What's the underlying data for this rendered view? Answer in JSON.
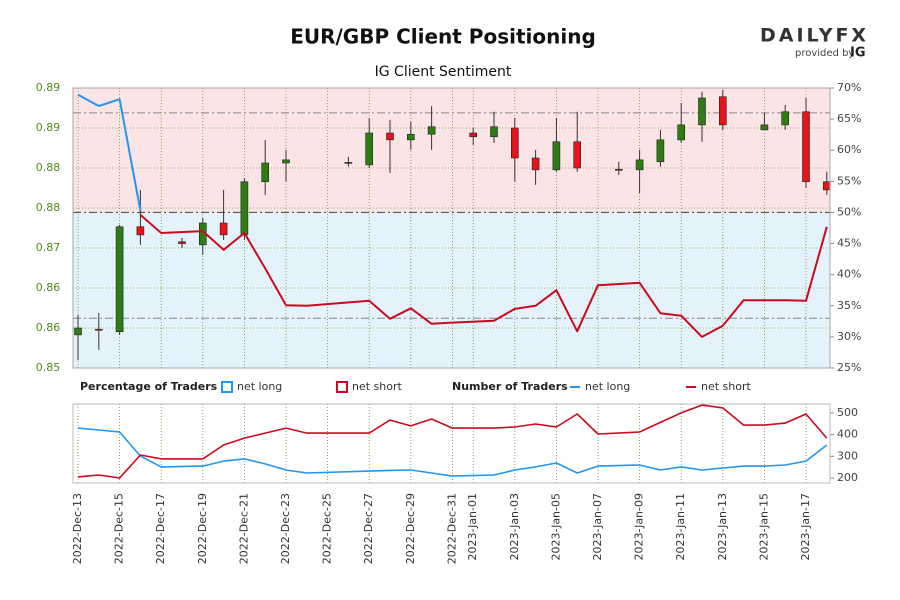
{
  "header": {
    "title": "EUR/GBP Client Positioning",
    "subtitle": "IG Client Sentiment",
    "brand": "DAILYFX",
    "tagline": "provided by",
    "brand_mark": "IG"
  },
  "chart_data": [
    {
      "type": "candlestick",
      "title": "Percentage of Traders",
      "candles": {
        "x": [
          "2022-Dec-13",
          "2022-Dec-14",
          "2022-Dec-15",
          "2022-Dec-16",
          "2022-Dec-18",
          "2022-Dec-19",
          "2022-Dec-20",
          "2022-Dec-21",
          "2022-Dec-22",
          "2022-Dec-23",
          "2022-Dec-26",
          "2022-Dec-27",
          "2022-Dec-28",
          "2022-Dec-29",
          "2022-Dec-30",
          "2023-Jan-01",
          "2023-Jan-02",
          "2023-Jan-03",
          "2023-Jan-04",
          "2023-Jan-05",
          "2023-Jan-06",
          "2023-Jan-08",
          "2023-Jan-09",
          "2023-Jan-10",
          "2023-Jan-11",
          "2023-Jan-12",
          "2023-Jan-13",
          "2023-Jan-15",
          "2023-Jan-16",
          "2023-Jan-17",
          "2023-Jan-18"
        ],
        "open": [
          0.8553,
          0.8562,
          0.8558,
          0.8726,
          0.8702,
          0.8697,
          0.8732,
          0.8713,
          0.8798,
          0.8828,
          0.8828,
          0.8825,
          0.8876,
          0.8865,
          0.8874,
          0.8876,
          0.887,
          0.8884,
          0.8836,
          0.8817,
          0.8862,
          0.8818,
          0.8817,
          0.883,
          0.8865,
          0.8889,
          0.8934,
          0.8881,
          0.8889,
          0.891,
          0.8798
        ],
        "high": [
          0.8585,
          0.8588,
          0.8729,
          0.8785,
          0.8708,
          0.874,
          0.8785,
          0.8804,
          0.8865,
          0.8849,
          0.8838,
          0.89,
          0.8897,
          0.8894,
          0.8919,
          0.8884,
          0.891,
          0.89,
          0.8849,
          0.89,
          0.891,
          0.883,
          0.8849,
          0.8881,
          0.8924,
          0.8942,
          0.8945,
          0.8908,
          0.8921,
          0.8932,
          0.8814
        ],
        "low": [
          0.8513,
          0.8529,
          0.8553,
          0.8697,
          0.8692,
          0.8681,
          0.8705,
          0.8705,
          0.8777,
          0.8798,
          0.8822,
          0.882,
          0.8812,
          0.8849,
          0.8849,
          0.8857,
          0.886,
          0.8798,
          0.8793,
          0.8814,
          0.8814,
          0.8809,
          0.878,
          0.8822,
          0.886,
          0.8862,
          0.8881,
          0.8881,
          0.8881,
          0.8788,
          0.8777
        ],
        "close": [
          0.8564,
          0.8561,
          0.8726,
          0.8713,
          0.8699,
          0.8732,
          0.8713,
          0.8798,
          0.8828,
          0.8833,
          0.8829,
          0.8876,
          0.8865,
          0.8874,
          0.8886,
          0.887,
          0.8886,
          0.8836,
          0.8817,
          0.8862,
          0.882,
          0.8817,
          0.8833,
          0.8865,
          0.8889,
          0.8932,
          0.8889,
          0.8889,
          0.891,
          0.8798,
          0.8785
        ],
        "up_color": "#2e7d12",
        "down_color": "#e8141b"
      },
      "x": [
        "2022-Dec-13",
        "2022-Dec-14",
        "2022-Dec-15",
        "2022-Dec-16",
        "2022-Dec-17",
        "2022-Dec-19",
        "2022-Dec-20",
        "2022-Dec-21",
        "2022-Dec-22",
        "2022-Dec-23",
        "2022-Dec-24",
        "2022-Dec-27",
        "2022-Dec-28",
        "2022-Dec-29",
        "2022-Dec-30",
        "2022-Dec-31",
        "2023-Jan-02",
        "2023-Jan-03",
        "2023-Jan-04",
        "2023-Jan-05",
        "2023-Jan-06",
        "2023-Jan-07",
        "2023-Jan-09",
        "2023-Jan-10",
        "2023-Jan-11",
        "2023-Jan-12",
        "2023-Jan-13",
        "2023-Jan-14",
        "2023-Jan-15",
        "2023-Jan-16",
        "2023-Jan-17",
        "2023-Jan-18"
      ],
      "series": [
        {
          "name": "net long",
          "color": "#2196f3",
          "axis": "y2",
          "values": [
            68.9,
            67.1,
            68.2,
            50.3,
            null,
            null,
            null,
            null,
            null,
            null,
            null,
            null,
            null,
            null,
            null,
            null,
            null,
            null,
            null,
            null,
            null,
            null,
            null,
            null,
            null,
            null,
            null,
            null,
            null,
            null,
            null,
            null
          ]
        },
        {
          "name": "net short",
          "color": "#cc0a1e",
          "axis": "y2",
          "values": [
            null,
            null,
            null,
            49.6,
            46.7,
            47.0,
            44.0,
            46.7,
            41.0,
            35.1,
            35.0,
            35.8,
            32.9,
            34.6,
            32.1,
            32.3,
            32.6,
            34.5,
            35.0,
            37.5,
            30.9,
            38.3,
            38.7,
            33.8,
            33.4,
            30.0,
            31.8,
            35.9,
            35.9,
            35.9,
            35.8,
            47.7
          ]
        }
      ],
      "ylim": [
        0.85,
        0.8948
      ],
      "yticks": [
        0.85,
        {
          "value": 0.8564,
          "label": "0.86"
        },
        {
          "value": 0.8628,
          "label": "0.86"
        },
        {
          "value": 0.8692,
          "label": "0.87"
        },
        {
          "value": 0.8756,
          "label": "0.88"
        },
        {
          "value": 0.882,
          "label": "0.88"
        },
        {
          "value": 0.8884,
          "label": "0.89"
        },
        {
          "value": 0.8948,
          "label": "0.89"
        }
      ],
      "y2lim": [
        25,
        70
      ],
      "y2ticks": [
        {
          "value": 25,
          "label": "25%"
        },
        {
          "value": 30,
          "label": "30%"
        },
        {
          "value": 35,
          "label": "35%"
        },
        {
          "value": 40,
          "label": "40%"
        },
        {
          "value": 45,
          "label": "45%"
        },
        {
          "value": 50,
          "label": "50%"
        },
        {
          "value": 55,
          "label": "55%"
        },
        {
          "value": 60,
          "label": "60%"
        },
        {
          "value": 65,
          "label": "65%"
        },
        {
          "value": 70,
          "label": "70%"
        }
      ],
      "reference_lines": [
        66,
        50,
        33
      ],
      "shade_colors": [
        "#fbe4e5",
        "#e3f2fb"
      ],
      "grid": true
    },
    {
      "type": "line",
      "title": "Number of Traders",
      "x": [
        "2022-Dec-13",
        "2022-Dec-14",
        "2022-Dec-15",
        "2022-Dec-16",
        "2022-Dec-17",
        "2022-Dec-19",
        "2022-Dec-20",
        "2022-Dec-21",
        "2022-Dec-22",
        "2022-Dec-23",
        "2022-Dec-24",
        "2022-Dec-27",
        "2022-Dec-28",
        "2022-Dec-29",
        "2022-Dec-30",
        "2022-Dec-31",
        "2023-Jan-02",
        "2023-Jan-03",
        "2023-Jan-04",
        "2023-Jan-05",
        "2023-Jan-06",
        "2023-Jan-07",
        "2023-Jan-09",
        "2023-Jan-10",
        "2023-Jan-11",
        "2023-Jan-12",
        "2023-Jan-13",
        "2023-Jan-14",
        "2023-Jan-15",
        "2023-Jan-16",
        "2023-Jan-17",
        "2023-Jan-18"
      ],
      "series": [
        {
          "name": "net long",
          "color": "#2196f3",
          "values": [
            430,
            421,
            412,
            301,
            251,
            255,
            278,
            288,
            265,
            237,
            223,
            232,
            235,
            237,
            223,
            209,
            214,
            237,
            251,
            269,
            223,
            255,
            260,
            237,
            251,
            237,
            246,
            255,
            255,
            260,
            278,
            352
          ]
        },
        {
          "name": "net short",
          "color": "#cc0a1e",
          "values": [
            205,
            214,
            200,
            306,
            288,
            288,
            352,
            384,
            407,
            430,
            407,
            407,
            467,
            440,
            472,
            430,
            430,
            435,
            449,
            435,
            495,
            403,
            412,
            456,
            500,
            536,
            523,
            444,
            444,
            453,
            495,
            384
          ]
        }
      ],
      "ylim": [
        177,
        541
      ],
      "yticks": [
        200,
        300,
        400,
        500
      ],
      "xticks": [
        "2022-Dec-13",
        "2022-Dec-15",
        "2022-Dec-17",
        "2022-Dec-19",
        "2022-Dec-21",
        "2022-Dec-23",
        "2022-Dec-25",
        "2022-Dec-27",
        "2022-Dec-29",
        "2022-Dec-31",
        "2023-Jan-01",
        "2023-Jan-03",
        "2023-Jan-05",
        "2023-Jan-07",
        "2023-Jan-09",
        "2023-Jan-11",
        "2023-Jan-13",
        "2023-Jan-15",
        "2023-Jan-17"
      ],
      "grid": true
    }
  ]
}
